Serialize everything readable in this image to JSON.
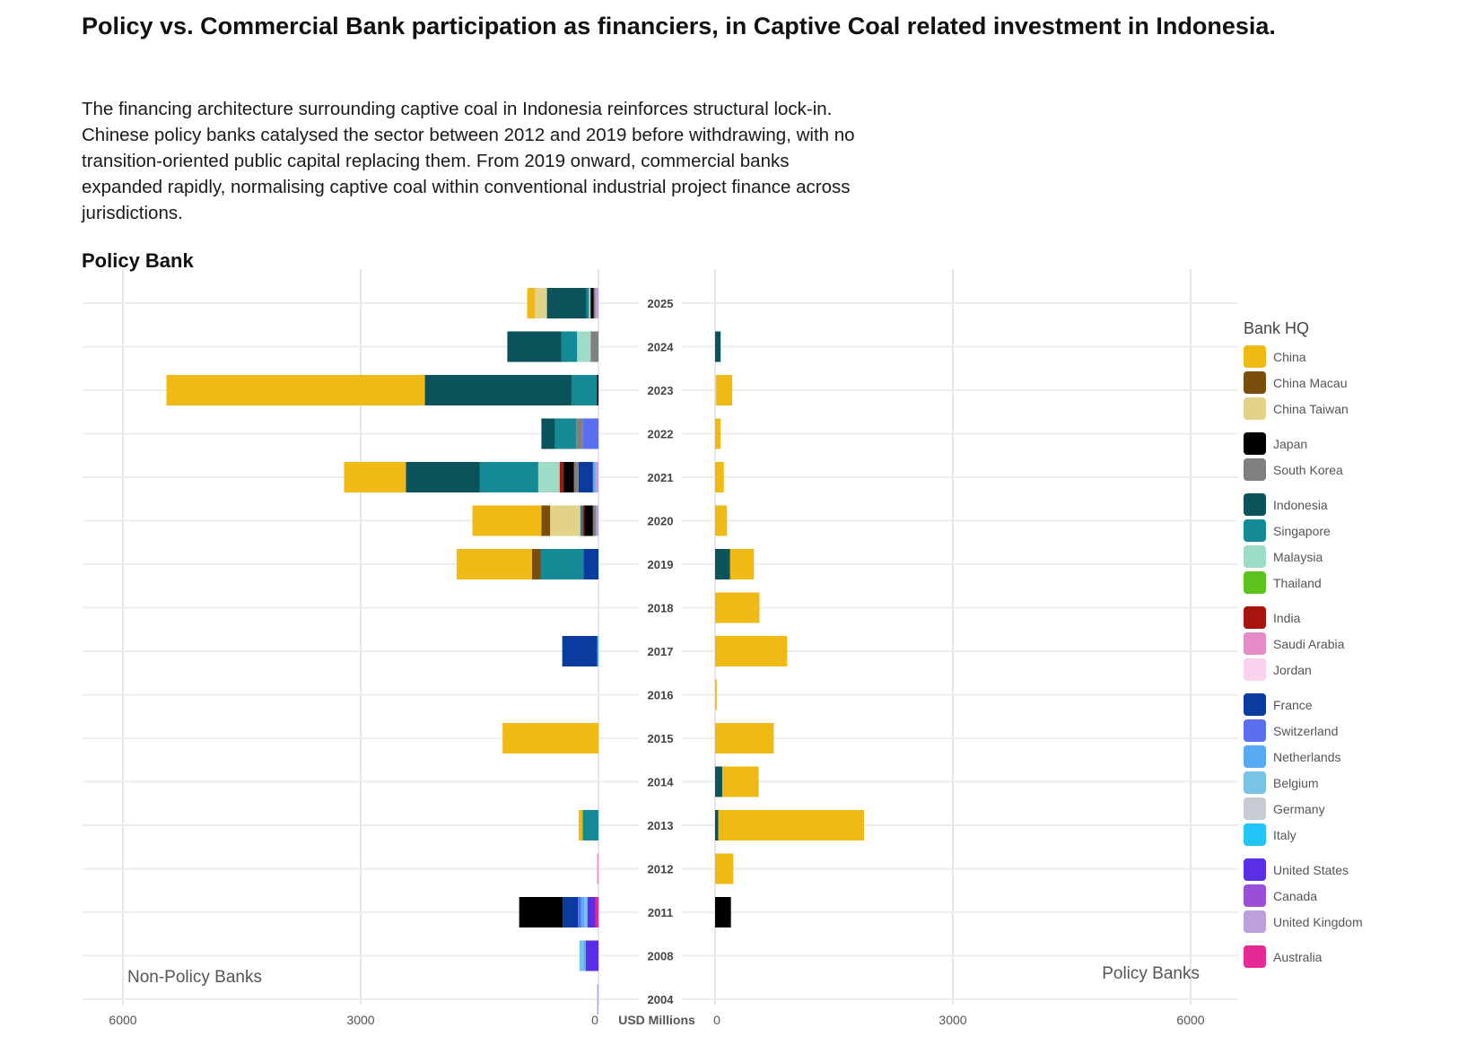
{
  "header": {
    "title": "Policy vs. Commercial Bank participation as financiers, in Captive Coal related investment in Indonesia.",
    "description": "The financing architecture surrounding captive coal in Indonesia reinforces structural lock-in. Chinese policy banks catalysed the sector between 2012 and 2019 before withdrawing, with no transition-oriented public capital replacing them. From 2019 onward, commercial banks expanded rapidly, normalising captive coal within conventional industrial project finance across jurisdictions.",
    "section_label": "Policy Bank"
  },
  "chart_data": {
    "type": "bar",
    "orientation": "horizontal-stacked-butterfly",
    "xlabel": "USD Millions",
    "left_panel_label": "Non-Policy Banks",
    "right_panel_label": "Policy Banks",
    "xlim": [
      0,
      6000
    ],
    "ticks": [
      "6000",
      "3000",
      "0",
      "0",
      "3000",
      "6000"
    ],
    "tick_values_left": [
      6000,
      3000,
      0
    ],
    "tick_values_right": [
      0,
      3000,
      6000
    ],
    "grid": true,
    "legend_title": "Bank HQ",
    "legend_position": "right",
    "legend": [
      {
        "name": "China",
        "color": "#F0B914",
        "group": 0
      },
      {
        "name": "China Macau",
        "color": "#7A4E0A",
        "group": 0
      },
      {
        "name": "China Taiwan",
        "color": "#E3D38A",
        "group": 0
      },
      {
        "name": "Japan",
        "color": "#000000",
        "group": 1
      },
      {
        "name": "South Korea",
        "color": "#808080",
        "group": 1
      },
      {
        "name": "Indonesia",
        "color": "#0B535B",
        "group": 2
      },
      {
        "name": "Singapore",
        "color": "#148A96",
        "group": 2
      },
      {
        "name": "Malaysia",
        "color": "#9EDCC8",
        "group": 2
      },
      {
        "name": "Thailand",
        "color": "#5BC21E",
        "group": 2
      },
      {
        "name": "India",
        "color": "#A8150F",
        "group": 3
      },
      {
        "name": "Saudi Arabia",
        "color": "#E58CC8",
        "group": 3
      },
      {
        "name": "Jordan",
        "color": "#FBD2EE",
        "group": 3
      },
      {
        "name": "France",
        "color": "#0A3B9E",
        "group": 4
      },
      {
        "name": "Switzerland",
        "color": "#5A6EF0",
        "group": 4
      },
      {
        "name": "Netherlands",
        "color": "#55AAF0",
        "group": 4
      },
      {
        "name": "Belgium",
        "color": "#7BC3E4",
        "group": 4
      },
      {
        "name": "Germany",
        "color": "#C8CCD2",
        "group": 4
      },
      {
        "name": "Italy",
        "color": "#22C5F5",
        "group": 4
      },
      {
        "name": "United States",
        "color": "#5A2EE6",
        "group": 5
      },
      {
        "name": "Canada",
        "color": "#9A4FD6",
        "group": 5
      },
      {
        "name": "United Kingdom",
        "color": "#BBA0DC",
        "group": 5
      },
      {
        "name": "Australia",
        "color": "#E52A96",
        "group": 6
      }
    ],
    "categories": [
      "2025",
      "2024",
      "2023",
      "2022",
      "2021",
      "2020",
      "2019",
      "2018",
      "2017",
      "2016",
      "2015",
      "2014",
      "2013",
      "2012",
      "2011",
      "2008",
      "2004"
    ],
    "non_policy_banks": [
      [
        [
          "China",
          100
        ],
        [
          "China Taiwan",
          150
        ],
        [
          "Indonesia",
          500
        ],
        [
          "Singapore",
          30
        ],
        [
          "Malaysia",
          20
        ],
        [
          "Japan",
          40
        ],
        [
          "South Korea",
          20
        ],
        [
          "United Kingdom",
          40
        ]
      ],
      [
        [
          "Indonesia",
          680
        ],
        [
          "Singapore",
          200
        ],
        [
          "Malaysia",
          170
        ],
        [
          "South Korea",
          100
        ]
      ],
      [
        [
          "China",
          3260
        ],
        [
          "Indonesia",
          1850
        ],
        [
          "Singapore",
          320
        ],
        [
          "Japan",
          20
        ]
      ],
      [
        [
          "Indonesia",
          170
        ],
        [
          "Singapore",
          270
        ],
        [
          "South Korea",
          80
        ],
        [
          "Switzerland",
          200
        ]
      ],
      [
        [
          "China",
          780
        ],
        [
          "Indonesia",
          930
        ],
        [
          "Singapore",
          740
        ],
        [
          "Malaysia",
          270
        ],
        [
          "India",
          50
        ],
        [
          "Japan",
          130
        ],
        [
          "South Korea",
          60
        ],
        [
          "France",
          180
        ],
        [
          "Netherlands",
          30
        ],
        [
          "United Kingdom",
          40
        ]
      ],
      [
        [
          "China",
          870
        ],
        [
          "China Macau",
          110
        ],
        [
          "China Taiwan",
          380
        ],
        [
          "Singapore",
          30
        ],
        [
          "India",
          20
        ],
        [
          "Japan",
          110
        ],
        [
          "South Korea",
          40
        ],
        [
          "United Kingdom",
          30
        ]
      ],
      [
        [
          "China",
          950
        ],
        [
          "China Macau",
          110
        ],
        [
          "Singapore",
          540
        ],
        [
          "France",
          190
        ]
      ],
      [],
      [
        [
          "France",
          440
        ],
        [
          "Netherlands",
          15
        ]
      ],
      [],
      [
        [
          "China",
          1210
        ]
      ],
      [],
      [
        [
          "China",
          50
        ],
        [
          "Singapore",
          200
        ]
      ],
      [
        [
          "Saudi Arabia",
          10
        ]
      ],
      [
        [
          "Japan",
          550
        ],
        [
          "France",
          190
        ],
        [
          "Switzerland",
          40
        ],
        [
          "Netherlands",
          40
        ],
        [
          "Belgium",
          40
        ],
        [
          "United States",
          100
        ],
        [
          "Australia",
          40
        ]
      ],
      [
        [
          "Belgium",
          50
        ],
        [
          "Netherlands",
          30
        ],
        [
          "United States",
          160
        ]
      ],
      [
        [
          "United Kingdom",
          15
        ]
      ]
    ],
    "policy_banks": [
      [],
      [
        [
          "Indonesia",
          70
        ]
      ],
      [
        [
          "China Taiwan",
          10
        ],
        [
          "China",
          200
        ]
      ],
      [
        [
          "China",
          70
        ]
      ],
      [
        [
          "China",
          110
        ]
      ],
      [
        [
          "China",
          150
        ]
      ],
      [
        [
          "Indonesia",
          190
        ],
        [
          "China",
          300
        ]
      ],
      [
        [
          "China",
          560
        ]
      ],
      [
        [
          "China",
          910
        ]
      ],
      [
        [
          "China",
          20
        ]
      ],
      [
        [
          "China",
          740
        ]
      ],
      [
        [
          "Indonesia",
          90
        ],
        [
          "China",
          460
        ]
      ],
      [
        [
          "Indonesia",
          40
        ],
        [
          "China",
          1840
        ]
      ],
      [
        [
          "China",
          230
        ]
      ],
      [
        [
          "Japan",
          200
        ]
      ],
      [],
      []
    ]
  }
}
